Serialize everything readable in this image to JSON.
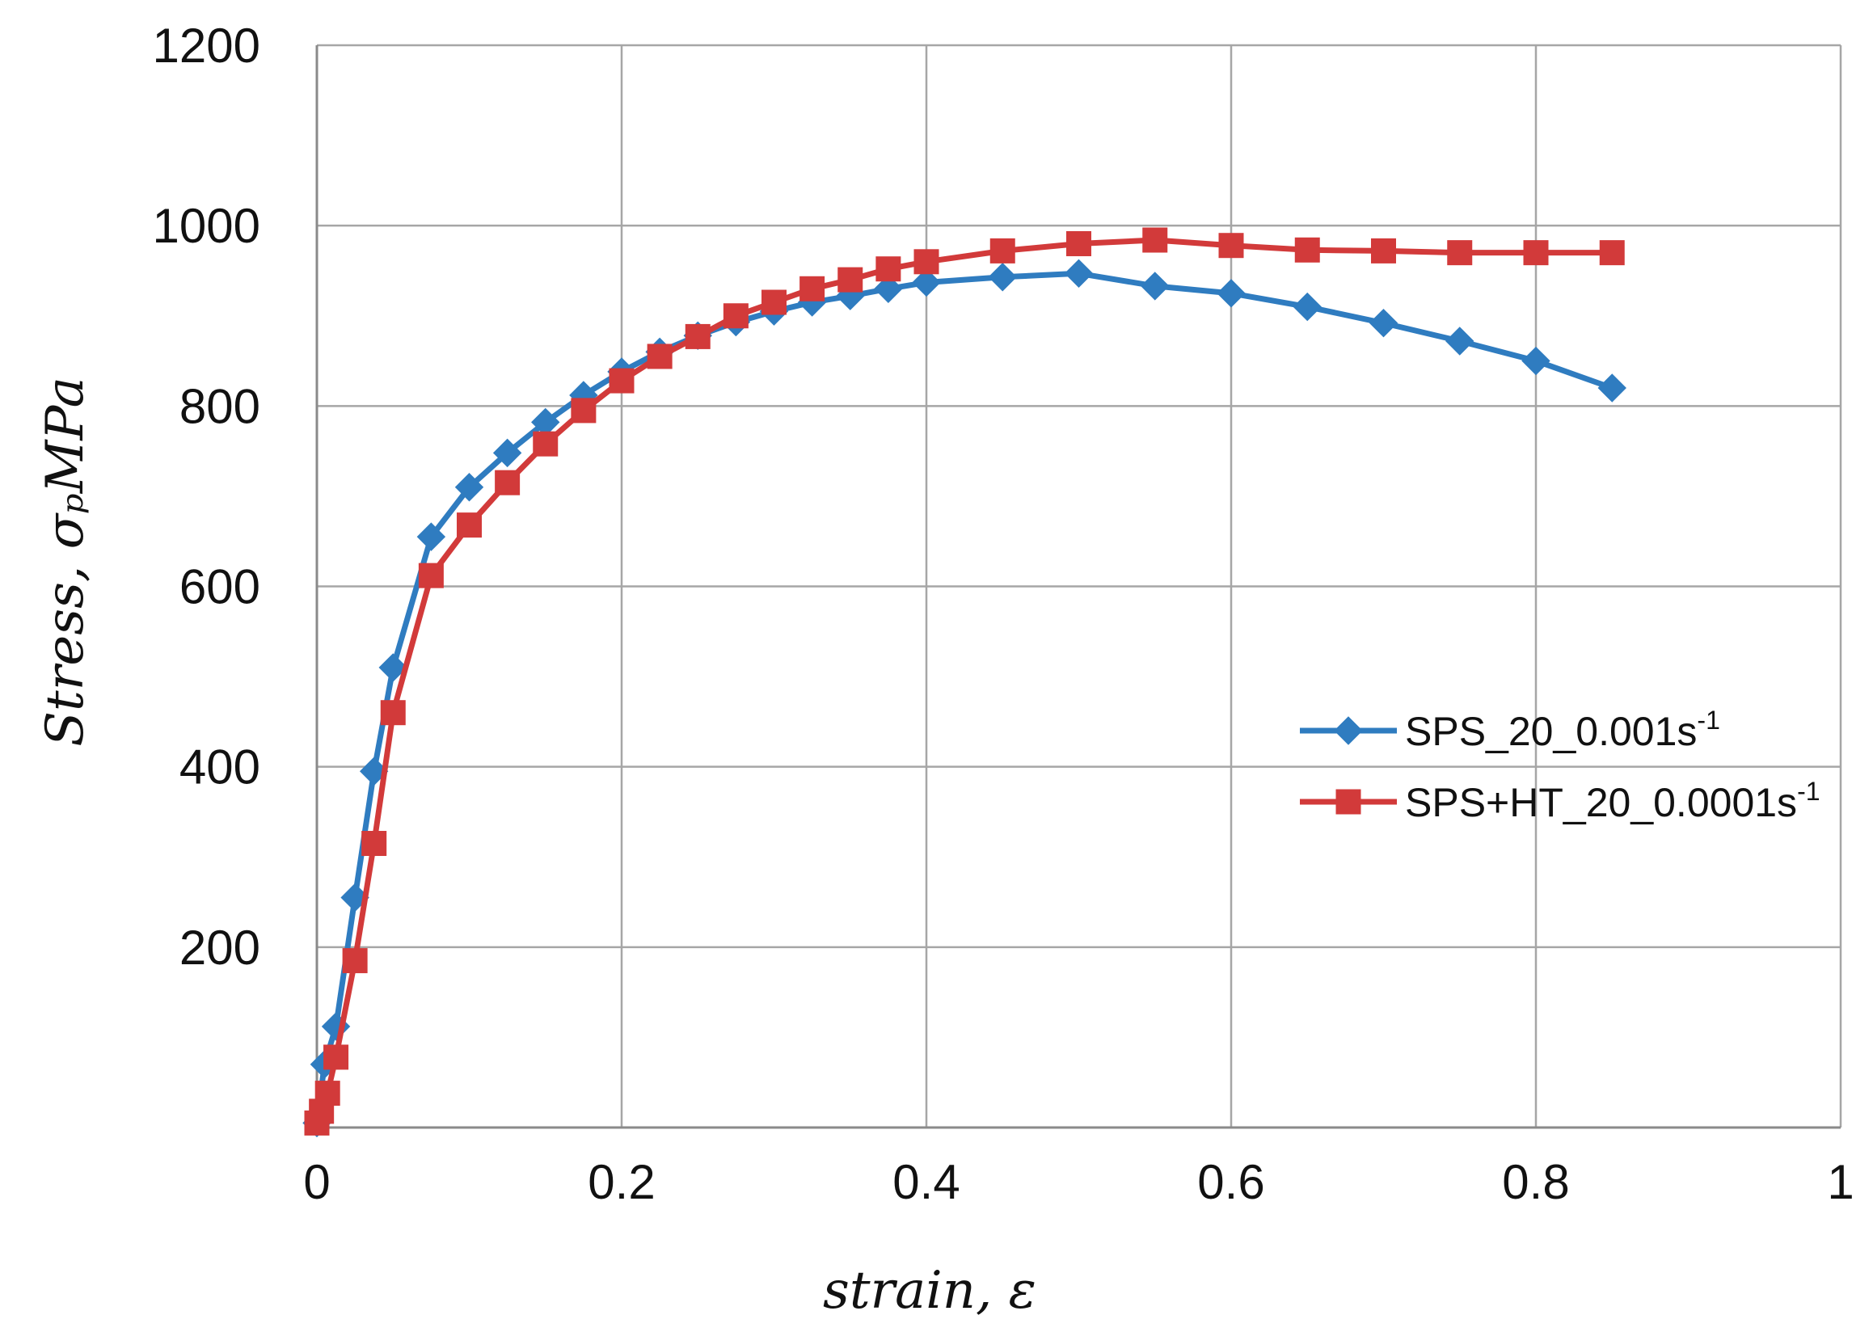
{
  "chart_data": {
    "type": "line",
    "title": "",
    "xlabel": "strain, ε",
    "ylabel": "Stress, σₚMPa",
    "xlim": [
      0,
      1
    ],
    "ylim": [
      0,
      1200
    ],
    "xticks": [
      "0",
      "0.2",
      "0.4",
      "0.6",
      "0.8",
      "1"
    ],
    "yticks": [
      "200",
      "400",
      "600",
      "800",
      "1000",
      "1200"
    ],
    "grid": true,
    "legend_position": "right",
    "series": [
      {
        "name": "SPS_20_0.001s",
        "name_sup": "-1",
        "color": "#2f7cc0",
        "marker": "diamond",
        "points": [
          [
            0.0,
            5
          ],
          [
            0.005,
            70
          ],
          [
            0.0125,
            112
          ],
          [
            0.025,
            255
          ],
          [
            0.0375,
            395
          ],
          [
            0.05,
            510
          ],
          [
            0.075,
            655
          ],
          [
            0.1,
            710
          ],
          [
            0.125,
            748
          ],
          [
            0.15,
            782
          ],
          [
            0.175,
            812
          ],
          [
            0.2,
            838
          ],
          [
            0.225,
            860
          ],
          [
            0.25,
            878
          ],
          [
            0.275,
            893
          ],
          [
            0.3,
            905
          ],
          [
            0.325,
            915
          ],
          [
            0.35,
            922
          ],
          [
            0.375,
            930
          ],
          [
            0.4,
            937
          ],
          [
            0.45,
            943
          ],
          [
            0.5,
            947
          ],
          [
            0.55,
            933
          ],
          [
            0.6,
            925
          ],
          [
            0.65,
            910
          ],
          [
            0.7,
            892
          ],
          [
            0.75,
            872
          ],
          [
            0.8,
            850
          ],
          [
            0.85,
            820
          ]
        ]
      },
      {
        "name": "SPS+HT_20_0.0001s",
        "name_sup": "-1",
        "color": "#d23a3a",
        "marker": "square",
        "points": [
          [
            0.0,
            5
          ],
          [
            0.003,
            18
          ],
          [
            0.007,
            38
          ],
          [
            0.0125,
            78
          ],
          [
            0.025,
            185
          ],
          [
            0.0375,
            315
          ],
          [
            0.05,
            460
          ],
          [
            0.075,
            612
          ],
          [
            0.1,
            668
          ],
          [
            0.125,
            715
          ],
          [
            0.15,
            758
          ],
          [
            0.175,
            795
          ],
          [
            0.2,
            828
          ],
          [
            0.225,
            855
          ],
          [
            0.25,
            877
          ],
          [
            0.275,
            900
          ],
          [
            0.3,
            915
          ],
          [
            0.325,
            930
          ],
          [
            0.35,
            940
          ],
          [
            0.375,
            952
          ],
          [
            0.4,
            960
          ],
          [
            0.45,
            972
          ],
          [
            0.5,
            980
          ],
          [
            0.55,
            984
          ],
          [
            0.6,
            978
          ],
          [
            0.65,
            973
          ],
          [
            0.7,
            972
          ],
          [
            0.75,
            970
          ],
          [
            0.8,
            970
          ],
          [
            0.85,
            970
          ]
        ]
      }
    ]
  }
}
